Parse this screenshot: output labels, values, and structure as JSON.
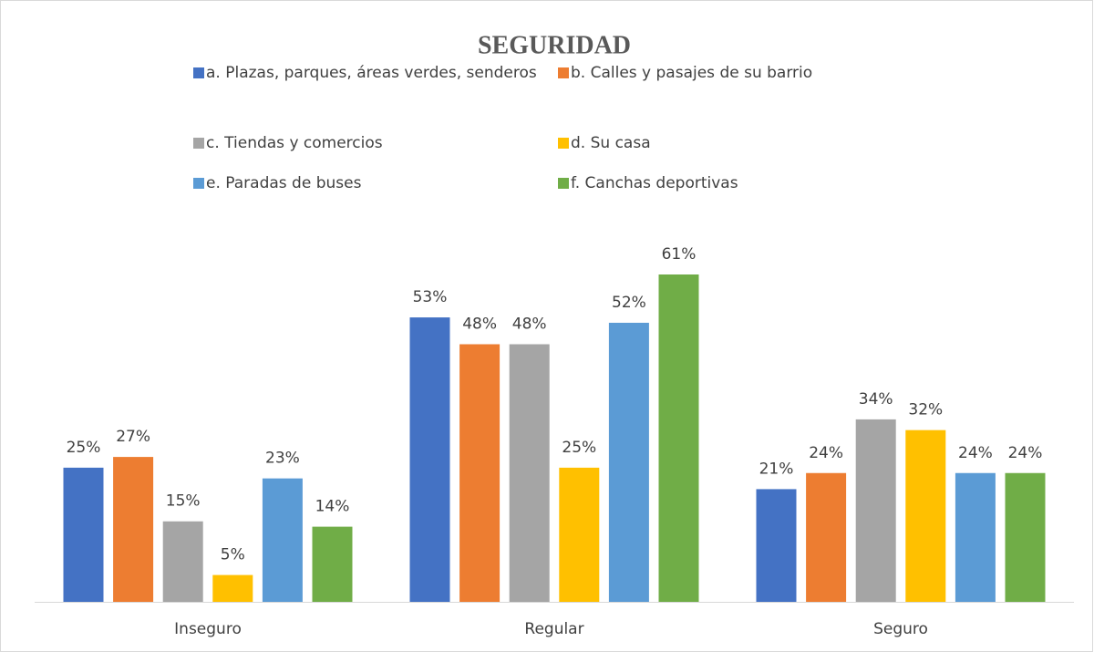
{
  "chart_data": {
    "type": "bar",
    "title": "SEGURIDAD",
    "categories": [
      "Inseguro",
      "Regular",
      "Seguro"
    ],
    "series": [
      {
        "name": "a. Plazas, parques, áreas verdes, senderos",
        "color": "#4472c4",
        "values": [
          25,
          53,
          21
        ],
        "value_labels": [
          "25%",
          "53%",
          "21%"
        ]
      },
      {
        "name": "b. Calles y pasajes de su barrio",
        "color": "#ed7d31",
        "values": [
          27,
          48,
          24
        ],
        "value_labels": [
          "27%",
          "48%",
          "24%"
        ]
      },
      {
        "name": "c. Tiendas y comercios",
        "color": "#a5a5a5",
        "values": [
          15,
          48,
          34
        ],
        "value_labels": [
          "15%",
          "48%",
          "34%"
        ]
      },
      {
        "name": "d. Su casa",
        "color": "#ffc000",
        "values": [
          5,
          25,
          32
        ],
        "value_labels": [
          "5%",
          "25%",
          "32%"
        ]
      },
      {
        "name": "e. Paradas de buses",
        "color": "#5b9bd5",
        "values": [
          23,
          52,
          24
        ],
        "value_labels": [
          "23%",
          "52%",
          "24%"
        ]
      },
      {
        "name": "f. Canchas deportivas",
        "color": "#70ad47",
        "values": [
          14,
          61,
          24
        ],
        "value_labels": [
          "14%",
          "61%",
          "24%"
        ]
      }
    ]
  }
}
